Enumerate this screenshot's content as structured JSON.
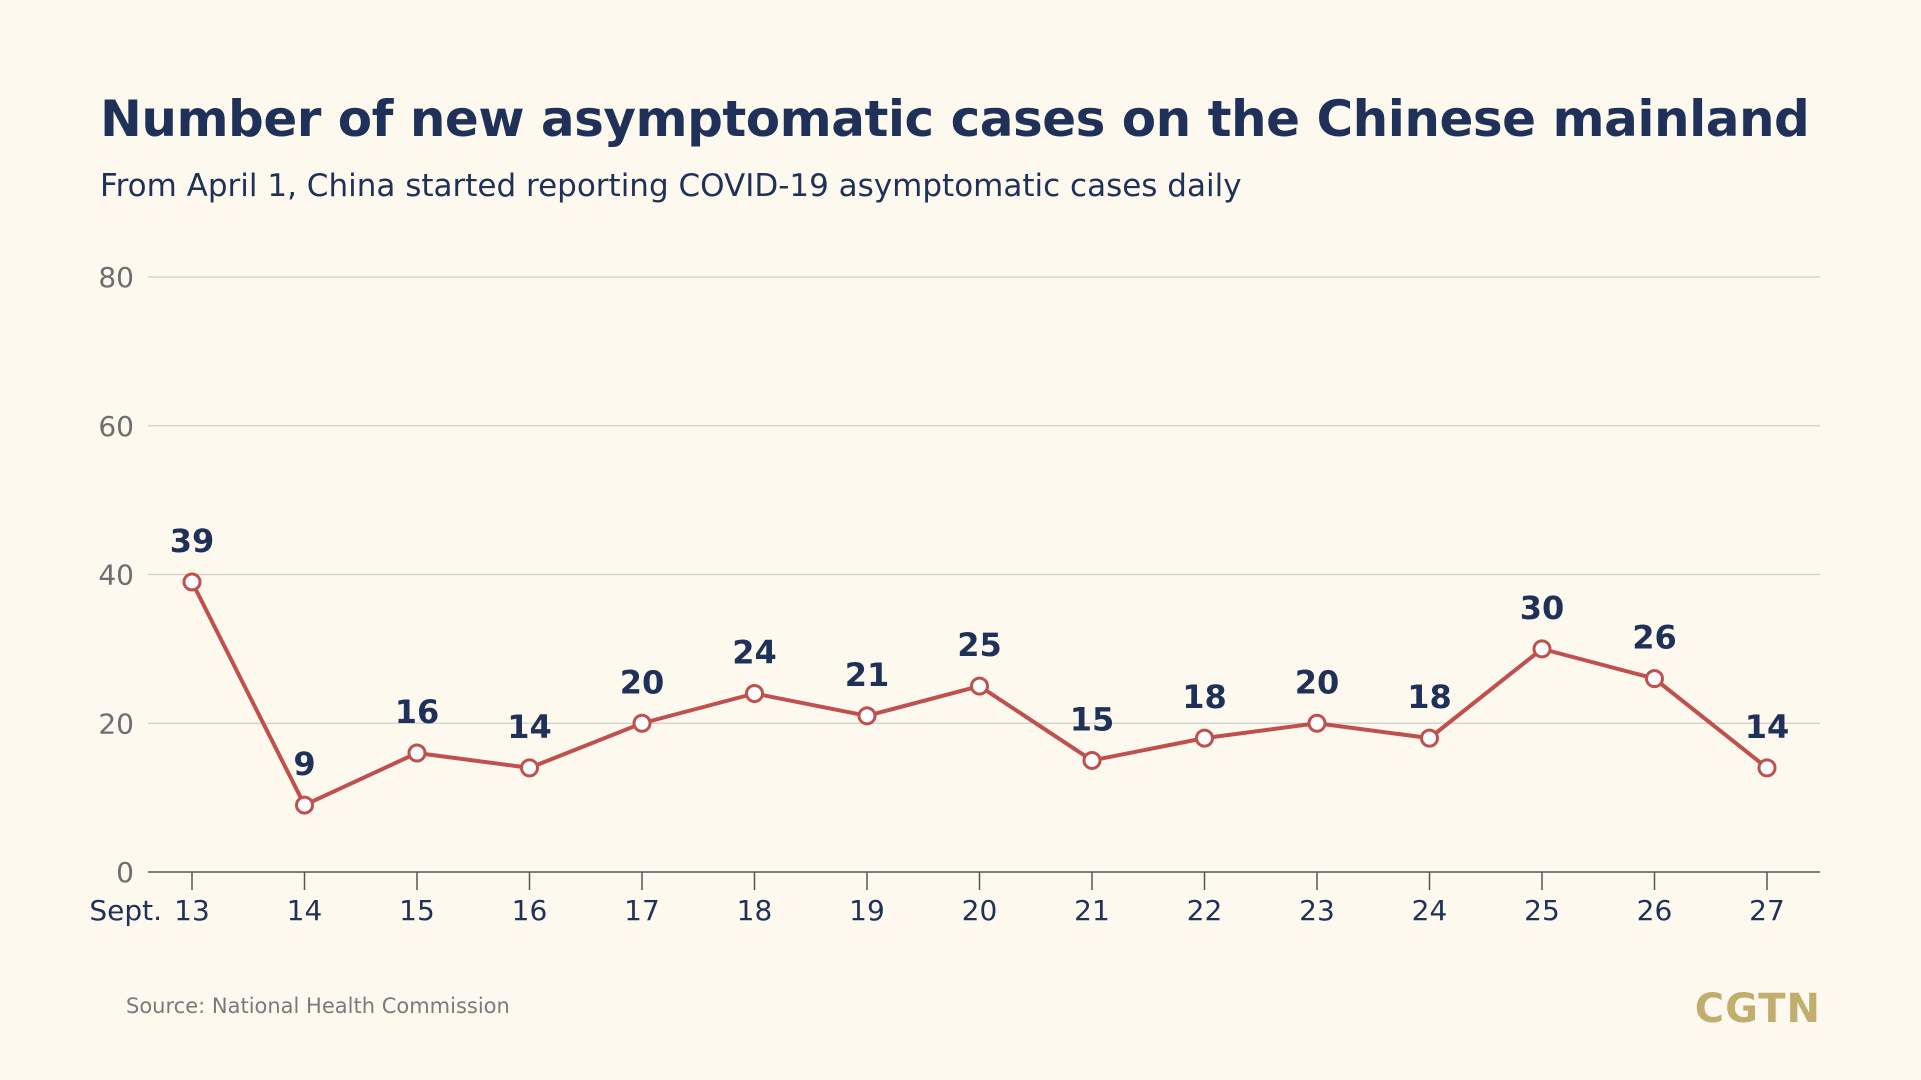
{
  "header": {
    "title": "Number of new asymptomatic cases on the Chinese mainland",
    "subtitle": "From April 1, China started reporting COVID-19 asymptomatic cases daily"
  },
  "footer": {
    "source": "Source: National Health Commission",
    "logo": "CGTN"
  },
  "chart_data": {
    "type": "line",
    "title": "Number of new asymptomatic cases on the Chinese mainland",
    "subtitle": "From April 1, China started reporting COVID-19 asymptomatic cases daily",
    "xlabel": "",
    "ylabel": "",
    "x_axis_prefix": "Sept.",
    "categories": [
      "13",
      "14",
      "15",
      "16",
      "17",
      "18",
      "19",
      "20",
      "21",
      "22",
      "23",
      "24",
      "25",
      "26",
      "27"
    ],
    "series": [
      {
        "values": [
          39,
          9,
          16,
          14,
          20,
          24,
          21,
          25,
          15,
          18,
          20,
          18,
          30,
          26,
          14
        ],
        "color": "#c0504d"
      }
    ],
    "ylim": [
      0,
      80
    ],
    "yticks": [
      0,
      20,
      40,
      60,
      80
    ],
    "grid": true,
    "legend": "none",
    "colors": {
      "line": "#c0504d",
      "marker_fill": "#ffffff",
      "grid": "#cfcfc6",
      "axis": "#555555",
      "label": "#1f3158"
    }
  }
}
